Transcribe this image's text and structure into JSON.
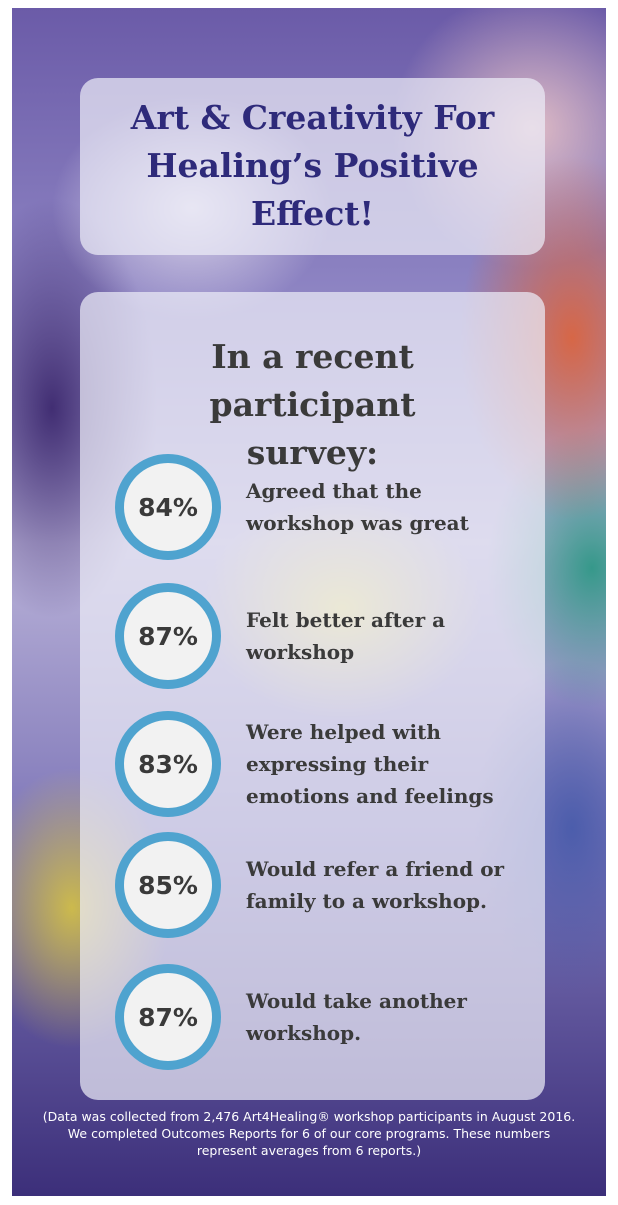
{
  "title": "Art & Creativity For Healing’s Positive Effect!",
  "survey": {
    "heading": "In a recent participant survey:",
    "stats": [
      {
        "percent": "84%",
        "text": "Agreed that the workshop was great"
      },
      {
        "percent": "87%",
        "text": "Felt better after a workshop"
      },
      {
        "percent": "83%",
        "text": "Were helped with expressing their emotions and feelings"
      },
      {
        "percent": "85%",
        "text": "Would refer a friend or family to a workshop."
      },
      {
        "percent": "87%",
        "text": "Would take another workshop."
      }
    ]
  },
  "footnote": "(Data was collected from 2,476 Art4Healing® workshop participants in August 2016. We completed Outcomes Reports for 6 of our core programs. These numbers represent averages from 6 reports.)"
}
